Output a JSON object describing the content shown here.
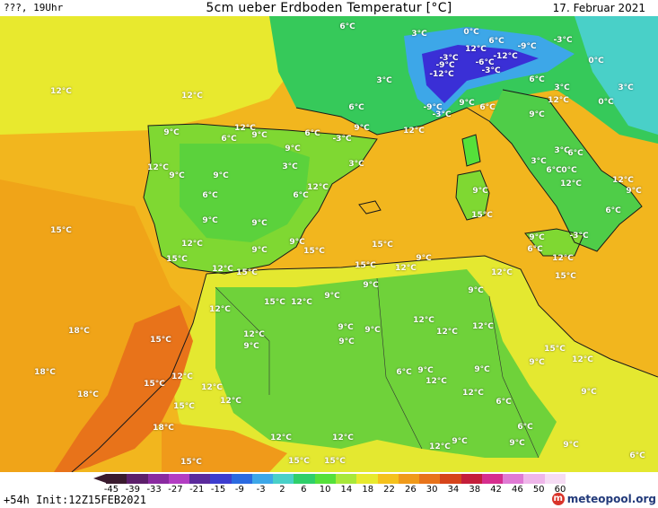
{
  "header": {
    "run_label": "???, 19Uhr",
    "title": "5cm ueber Erdboden Temperatur [°C]",
    "date": "17. Februar 2021"
  },
  "footer": {
    "init": "+54h Init:12Z15FEB2021",
    "logo": "meteopool.org",
    "logo_mark": "m"
  },
  "legend": {
    "ticks": [
      "-45",
      "-39",
      "-33",
      "-27",
      "-21",
      "-15",
      "-9",
      "-3",
      "2",
      "6",
      "10",
      "14",
      "18",
      "22",
      "26",
      "30",
      "34",
      "38",
      "42",
      "46",
      "50",
      "60"
    ],
    "colors": [
      "#3a1b2e",
      "#5c1f6a",
      "#8a2aa0",
      "#b33dc3",
      "#5b2a9c",
      "#3d3dcf",
      "#2b6ae0",
      "#3da7e8",
      "#49d0c8",
      "#2fcf6a",
      "#55e03a",
      "#a8e83a",
      "#e8ea2e",
      "#f5c21c",
      "#f09a1a",
      "#e8731a",
      "#d6441b",
      "#c41e3a",
      "#d62e8e",
      "#e07ad4",
      "#efb6ea",
      "#f6dcf4"
    ]
  },
  "map": {
    "colors": {
      "sea": "#f2b61e",
      "sea_west": "#f0a418",
      "iberia": "#7fd832",
      "africa": "#6fd23a",
      "alps": "#3d8ae6",
      "alps_cold": "#3a2fd6",
      "europe_green": "#36c95a",
      "italy": "#4fcd48",
      "morocco_hot": "#e8731a",
      "yellow": "#e4e830"
    },
    "labels": [
      {
        "t": "6°C",
        "lon": 387,
        "lat": 30
      },
      {
        "t": "3°C",
        "lon": 467,
        "lat": 38
      },
      {
        "t": "0°C",
        "lon": 525,
        "lat": 36
      },
      {
        "t": "6°C",
        "lon": 553,
        "lat": 46
      },
      {
        "t": "-9°C",
        "lon": 587,
        "lat": 52
      },
      {
        "t": "-3°C",
        "lon": 627,
        "lat": 45
      },
      {
        "t": "12°C",
        "lon": 530,
        "lat": 55
      },
      {
        "t": "-12°C",
        "lon": 563,
        "lat": 63
      },
      {
        "t": "-3°C",
        "lon": 500,
        "lat": 65
      },
      {
        "t": "-6°C",
        "lon": 540,
        "lat": 70
      },
      {
        "t": "-9°C",
        "lon": 496,
        "lat": 73
      },
      {
        "t": "0°C",
        "lon": 664,
        "lat": 68
      },
      {
        "t": "-12°C",
        "lon": 492,
        "lat": 83
      },
      {
        "t": "-3°C",
        "lon": 547,
        "lat": 79
      },
      {
        "t": "3°C",
        "lon": 428,
        "lat": 90
      },
      {
        "t": "6°C",
        "lon": 598,
        "lat": 89
      },
      {
        "t": "3°C",
        "lon": 626,
        "lat": 98
      },
      {
        "t": "3°C",
        "lon": 697,
        "lat": 98
      },
      {
        "t": "12°C",
        "lon": 68,
        "lat": 102
      },
      {
        "t": "12°C",
        "lon": 214,
        "lat": 107
      },
      {
        "t": "6°C",
        "lon": 397,
        "lat": 120
      },
      {
        "t": "-9°C",
        "lon": 482,
        "lat": 120
      },
      {
        "t": "9°C",
        "lon": 520,
        "lat": 115
      },
      {
        "t": "6°C",
        "lon": 543,
        "lat": 120
      },
      {
        "t": "12°C",
        "lon": 622,
        "lat": 112
      },
      {
        "t": "0°C",
        "lon": 675,
        "lat": 114
      },
      {
        "t": "-3°C",
        "lon": 492,
        "lat": 128
      },
      {
        "t": "9°C",
        "lon": 598,
        "lat": 128
      },
      {
        "t": "12°C",
        "lon": 273,
        "lat": 143
      },
      {
        "t": "9°C",
        "lon": 403,
        "lat": 143
      },
      {
        "t": "12°C",
        "lon": 461,
        "lat": 146
      },
      {
        "t": "9°C",
        "lon": 191,
        "lat": 148
      },
      {
        "t": "6°C",
        "lon": 255,
        "lat": 155
      },
      {
        "t": "9°C",
        "lon": 289,
        "lat": 151
      },
      {
        "t": "6°C",
        "lon": 348,
        "lat": 149
      },
      {
        "t": "-3°C",
        "lon": 381,
        "lat": 155
      },
      {
        "t": "9°C",
        "lon": 326,
        "lat": 166
      },
      {
        "t": "3°C",
        "lon": 626,
        "lat": 168
      },
      {
        "t": "6°C",
        "lon": 641,
        "lat": 171
      },
      {
        "t": "12°C",
        "lon": 176,
        "lat": 187
      },
      {
        "t": "3°C",
        "lon": 600,
        "lat": 180
      },
      {
        "t": "6°C",
        "lon": 617,
        "lat": 190
      },
      {
        "t": "0°C",
        "lon": 634,
        "lat": 190
      },
      {
        "t": "9°C",
        "lon": 197,
        "lat": 196
      },
      {
        "t": "9°C",
        "lon": 246,
        "lat": 196
      },
      {
        "t": "3°C",
        "lon": 323,
        "lat": 186
      },
      {
        "t": "3°C",
        "lon": 397,
        "lat": 183
      },
      {
        "t": "12°C",
        "lon": 694,
        "lat": 201
      },
      {
        "t": "12°C",
        "lon": 354,
        "lat": 209
      },
      {
        "t": "12°C",
        "lon": 636,
        "lat": 205
      },
      {
        "t": "9°C",
        "lon": 706,
        "lat": 213
      },
      {
        "t": "6°C",
        "lon": 234,
        "lat": 218
      },
      {
        "t": "6°C",
        "lon": 335,
        "lat": 218
      },
      {
        "t": "9°C",
        "lon": 535,
        "lat": 213
      },
      {
        "t": "9°C",
        "lon": 234,
        "lat": 246
      },
      {
        "t": "9°C",
        "lon": 289,
        "lat": 249
      },
      {
        "t": "6°C",
        "lon": 683,
        "lat": 235
      },
      {
        "t": "15°C",
        "lon": 537,
        "lat": 240
      },
      {
        "t": "15°C",
        "lon": 68,
        "lat": 257
      },
      {
        "t": "12°C",
        "lon": 214,
        "lat": 272
      },
      {
        "t": "9°C",
        "lon": 331,
        "lat": 270
      },
      {
        "t": "9°C",
        "lon": 289,
        "lat": 279
      },
      {
        "t": "15°C",
        "lon": 350,
        "lat": 280
      },
      {
        "t": "15°C",
        "lon": 426,
        "lat": 273
      },
      {
        "t": "9°C",
        "lon": 598,
        "lat": 265
      },
      {
        "t": "-3°C",
        "lon": 645,
        "lat": 263
      },
      {
        "t": "6°C",
        "lon": 596,
        "lat": 278
      },
      {
        "t": "15°C",
        "lon": 197,
        "lat": 289
      },
      {
        "t": "9°C",
        "lon": 472,
        "lat": 288
      },
      {
        "t": "12°C",
        "lon": 627,
        "lat": 288
      },
      {
        "t": "12°C",
        "lon": 248,
        "lat": 300
      },
      {
        "t": "15°C",
        "lon": 275,
        "lat": 304
      },
      {
        "t": "15°C",
        "lon": 407,
        "lat": 296
      },
      {
        "t": "12°C",
        "lon": 452,
        "lat": 299
      },
      {
        "t": "12°C",
        "lon": 559,
        "lat": 304
      },
      {
        "t": "15°C",
        "lon": 630,
        "lat": 308
      },
      {
        "t": "9°C",
        "lon": 413,
        "lat": 318
      },
      {
        "t": "9°C",
        "lon": 530,
        "lat": 324
      },
      {
        "t": "9°C",
        "lon": 370,
        "lat": 330
      },
      {
        "t": "15°C",
        "lon": 306,
        "lat": 337
      },
      {
        "t": "12°C",
        "lon": 336,
        "lat": 337
      },
      {
        "t": "12°C",
        "lon": 245,
        "lat": 345
      },
      {
        "t": "12°C",
        "lon": 472,
        "lat": 357
      },
      {
        "t": "12°C",
        "lon": 498,
        "lat": 370
      },
      {
        "t": "9°C",
        "lon": 385,
        "lat": 365
      },
      {
        "t": "9°C",
        "lon": 415,
        "lat": 368
      },
      {
        "t": "12°C",
        "lon": 538,
        "lat": 364
      },
      {
        "t": "18°C",
        "lon": 88,
        "lat": 369
      },
      {
        "t": "15°C",
        "lon": 179,
        "lat": 379
      },
      {
        "t": "12°C",
        "lon": 283,
        "lat": 373
      },
      {
        "t": "9°C",
        "lon": 280,
        "lat": 386
      },
      {
        "t": "9°C",
        "lon": 386,
        "lat": 381
      },
      {
        "t": "15°C",
        "lon": 618,
        "lat": 389
      },
      {
        "t": "9°C",
        "lon": 598,
        "lat": 404
      },
      {
        "t": "12°C",
        "lon": 649,
        "lat": 401
      },
      {
        "t": "18°C",
        "lon": 50,
        "lat": 415
      },
      {
        "t": "12°C",
        "lon": 203,
        "lat": 420
      },
      {
        "t": "6°C",
        "lon": 450,
        "lat": 415
      },
      {
        "t": "9°C",
        "lon": 474,
        "lat": 413
      },
      {
        "t": "9°C",
        "lon": 537,
        "lat": 412
      },
      {
        "t": "15°C",
        "lon": 172,
        "lat": 428
      },
      {
        "t": "12°C",
        "lon": 236,
        "lat": 432
      },
      {
        "t": "12°C",
        "lon": 486,
        "lat": 425
      },
      {
        "t": "18°C",
        "lon": 98,
        "lat": 440
      },
      {
        "t": "9°C",
        "lon": 656,
        "lat": 437
      },
      {
        "t": "12°C",
        "lon": 257,
        "lat": 447
      },
      {
        "t": "12°C",
        "lon": 527,
        "lat": 438
      },
      {
        "t": "6°C",
        "lon": 561,
        "lat": 448
      },
      {
        "t": "15°C",
        "lon": 205,
        "lat": 453
      },
      {
        "t": "18°C",
        "lon": 182,
        "lat": 477
      },
      {
        "t": "6°C",
        "lon": 585,
        "lat": 476
      },
      {
        "t": "12°C",
        "lon": 313,
        "lat": 488
      },
      {
        "t": "12°C",
        "lon": 382,
        "lat": 488
      },
      {
        "t": "9°C",
        "lon": 512,
        "lat": 492
      },
      {
        "t": "12°C",
        "lon": 490,
        "lat": 498
      },
      {
        "t": "9°C",
        "lon": 576,
        "lat": 494
      },
      {
        "t": "9°C",
        "lon": 636,
        "lat": 496
      },
      {
        "t": "6°C",
        "lon": 710,
        "lat": 508
      },
      {
        "t": "15°C",
        "lon": 213,
        "lat": 515
      },
      {
        "t": "15°C",
        "lon": 333,
        "lat": 514
      },
      {
        "t": "15°C",
        "lon": 373,
        "lat": 514
      }
    ]
  }
}
